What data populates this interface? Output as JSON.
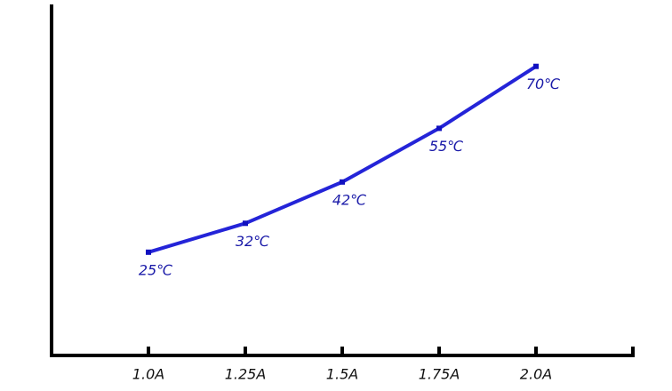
{
  "chart_data": {
    "type": "line",
    "categories": [
      "1.0A",
      "1.25A",
      "1.5A",
      "1.75A",
      "2.0A"
    ],
    "values": [
      25,
      32,
      42,
      55,
      70
    ],
    "value_labels": [
      "25℃",
      "32℃",
      "42℃",
      "55℃",
      "70℃"
    ],
    "color": "#2424d8",
    "ylim": [
      0,
      85
    ]
  }
}
